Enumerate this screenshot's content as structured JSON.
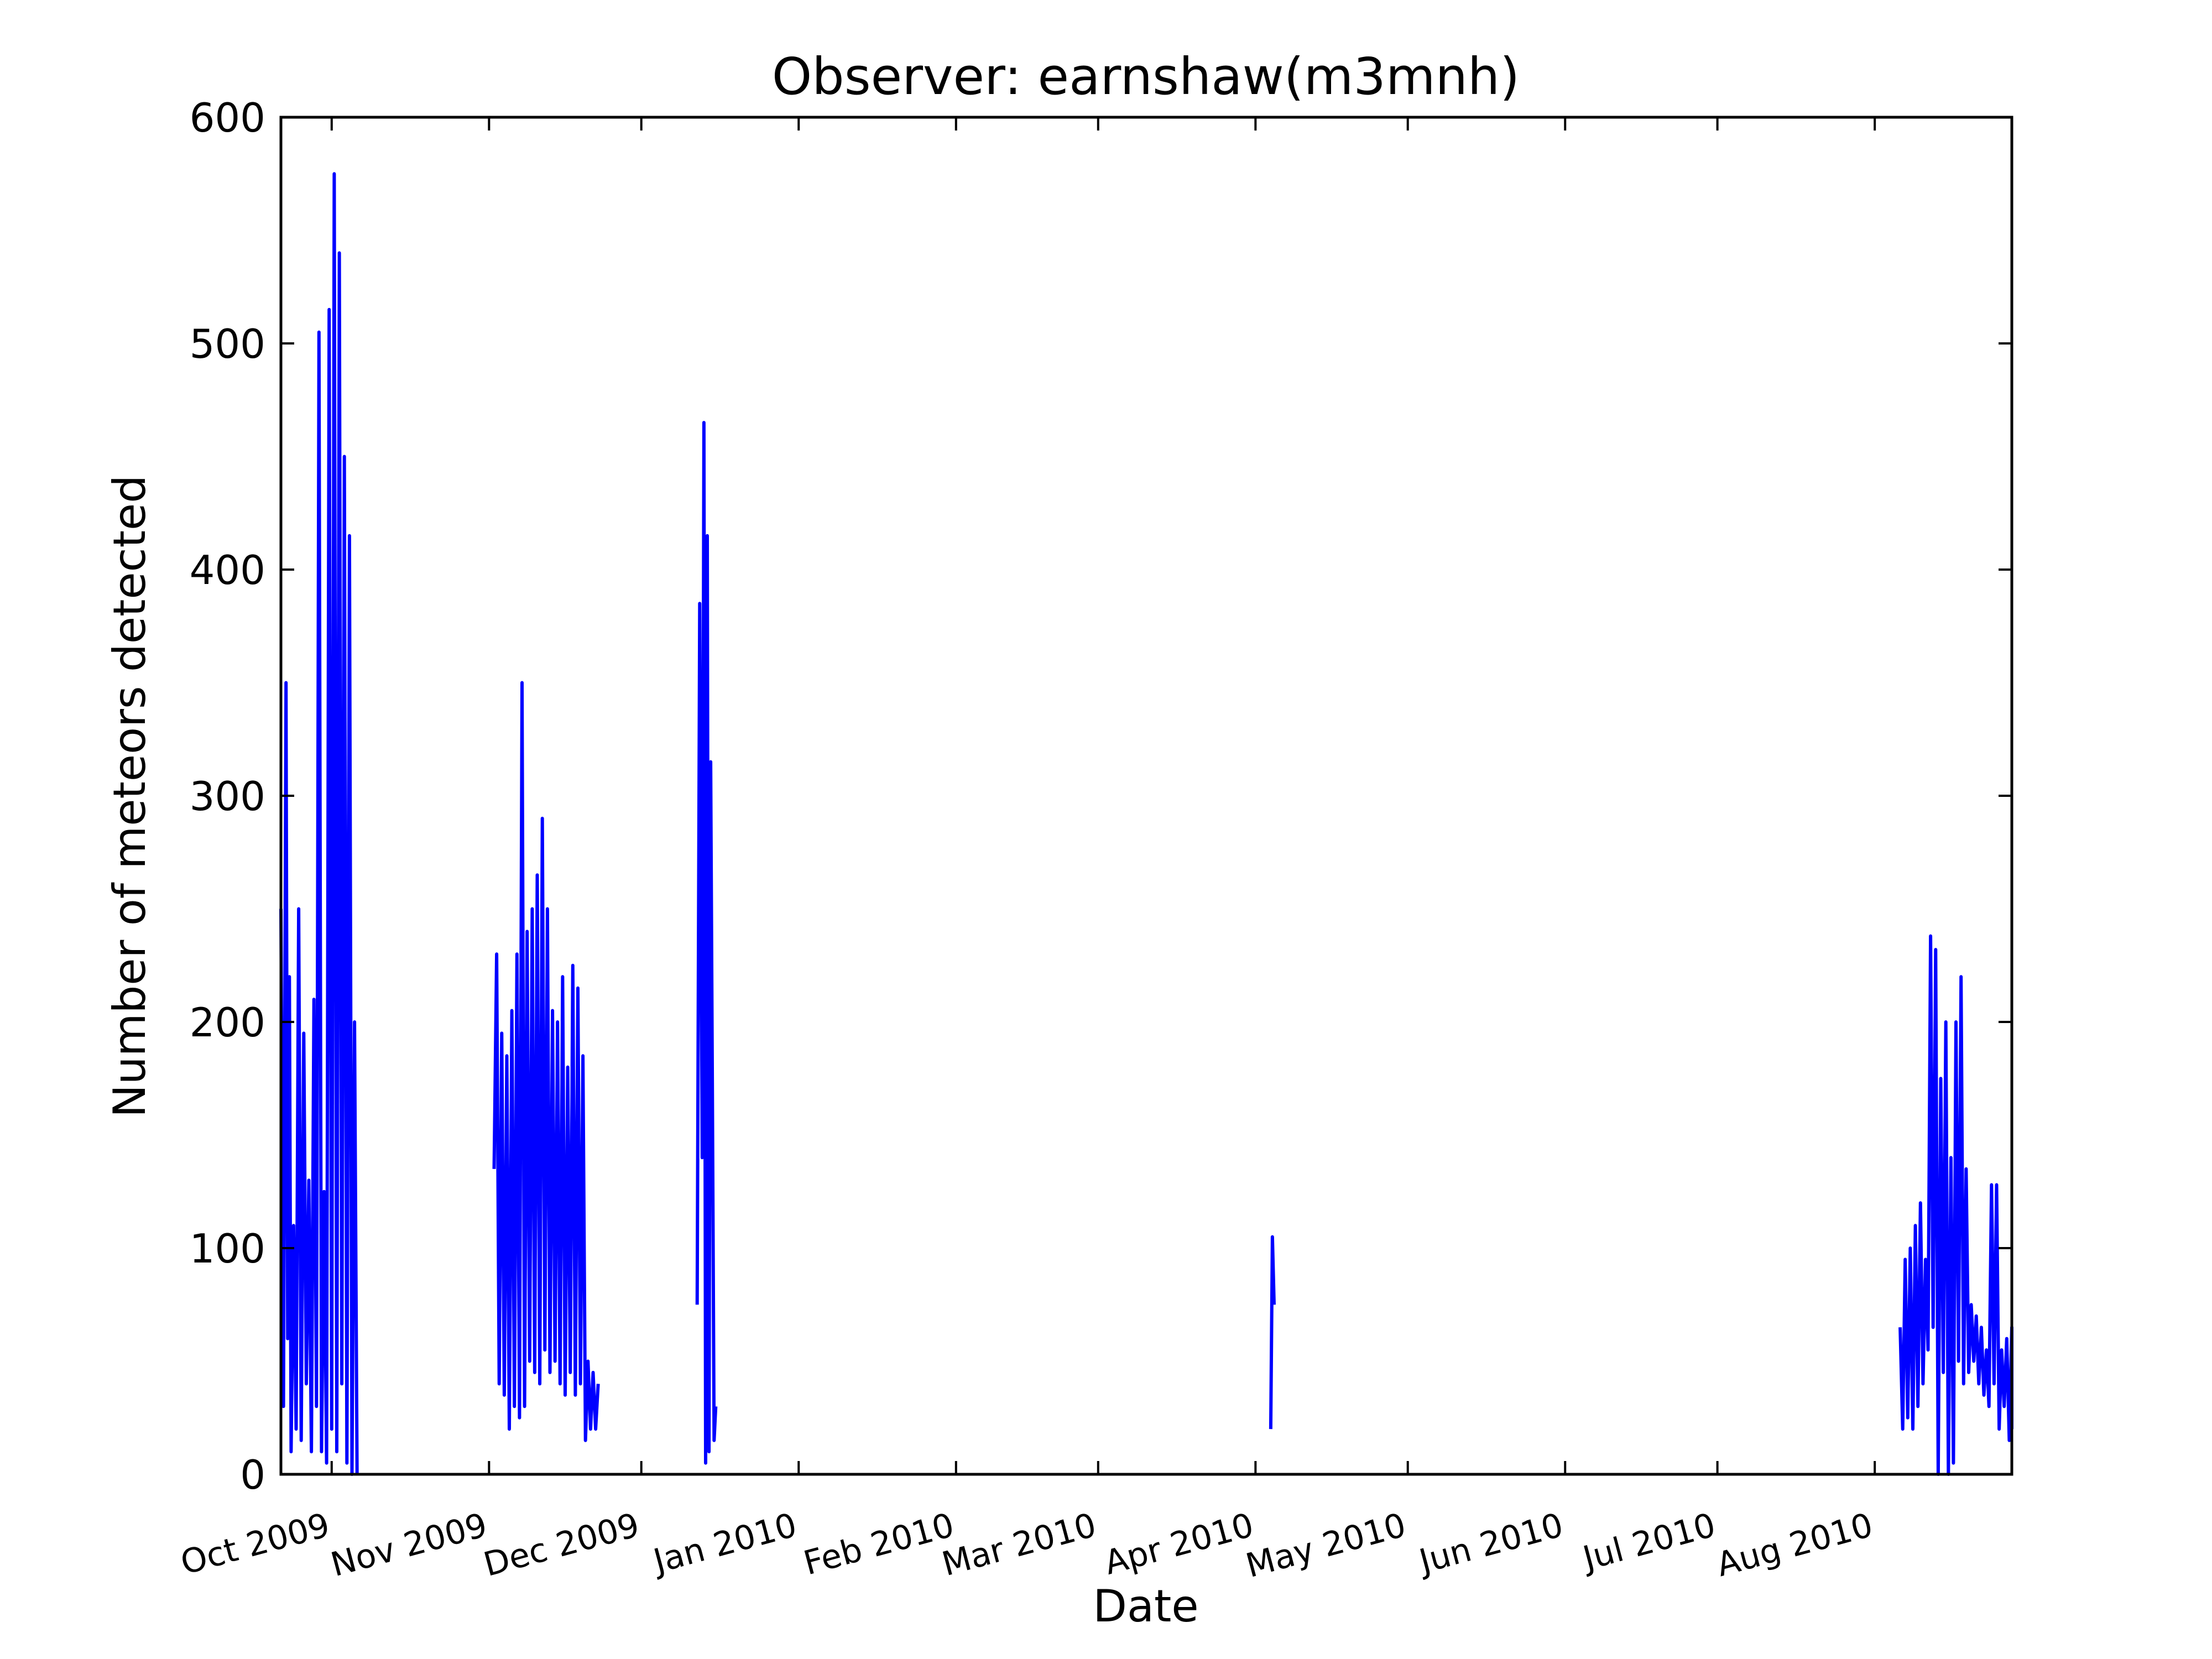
{
  "chart_data": {
    "type": "line",
    "title": "Observer: earnshaw(m3mnh)",
    "xlabel": "Date",
    "ylabel": "Number of meteors detected",
    "xlim": [
      "2009-09-21",
      "2010-08-28"
    ],
    "ylim": [
      0,
      600
    ],
    "yticks": [
      0,
      100,
      200,
      300,
      400,
      500,
      600
    ],
    "xticks": [
      {
        "date": "2009-10-01",
        "label": "Oct 2009"
      },
      {
        "date": "2009-11-01",
        "label": "Nov 2009"
      },
      {
        "date": "2009-12-01",
        "label": "Dec 2009"
      },
      {
        "date": "2010-01-01",
        "label": "Jan 2010"
      },
      {
        "date": "2010-02-01",
        "label": "Feb 2010"
      },
      {
        "date": "2010-03-01",
        "label": "Mar 2010"
      },
      {
        "date": "2010-04-01",
        "label": "Apr 2010"
      },
      {
        "date": "2010-05-01",
        "label": "May 2010"
      },
      {
        "date": "2010-06-01",
        "label": "Jun 2010"
      },
      {
        "date": "2010-07-01",
        "label": "Jul 2010"
      },
      {
        "date": "2010-08-01",
        "label": "Aug 2010"
      }
    ],
    "grid": false,
    "line_color": "#0000ff",
    "series": [
      {
        "x": [
          "2009-09-21",
          "2009-09-21",
          "2009-09-22",
          "2009-09-22",
          "2009-09-22",
          "2009-09-23",
          "2009-09-23",
          "2009-09-24",
          "2009-09-24",
          "2009-09-25",
          "2009-09-25",
          "2009-09-26",
          "2009-09-26",
          "2009-09-27",
          "2009-09-27",
          "2009-09-28",
          "2009-09-28",
          "2009-09-29",
          "2009-09-29",
          "2009-09-30",
          "2009-09-30",
          "2009-10-01",
          "2009-10-01",
          "2009-10-02",
          "2009-10-02",
          "2009-10-03",
          "2009-10-03",
          "2009-10-04",
          "2009-10-04",
          "2009-10-05",
          "2009-10-05",
          "2009-10-06"
        ],
        "y": [
          250,
          30,
          350,
          60,
          220,
          10,
          110,
          20,
          250,
          15,
          195,
          40,
          130,
          10,
          210,
          30,
          505,
          10,
          125,
          5,
          515,
          20,
          575,
          10,
          540,
          40,
          450,
          5,
          415,
          0,
          200,
          0
        ]
      },
      {
        "x": [
          "2009-11-02",
          "2009-11-02",
          "2009-11-03",
          "2009-11-03",
          "2009-11-04",
          "2009-11-04",
          "2009-11-05",
          "2009-11-05",
          "2009-11-06",
          "2009-11-06",
          "2009-11-07",
          "2009-11-07",
          "2009-11-08",
          "2009-11-08",
          "2009-11-09",
          "2009-11-09",
          "2009-11-10",
          "2009-11-10",
          "2009-11-11",
          "2009-11-11",
          "2009-11-12",
          "2009-11-12",
          "2009-11-13",
          "2009-11-13",
          "2009-11-14",
          "2009-11-14",
          "2009-11-15",
          "2009-11-15",
          "2009-11-16",
          "2009-11-16",
          "2009-11-17",
          "2009-11-17",
          "2009-11-18",
          "2009-11-18",
          "2009-11-19",
          "2009-11-19",
          "2009-11-20",
          "2009-11-20",
          "2009-11-21",
          "2009-11-21",
          "2009-11-22",
          "2009-11-22"
        ],
        "y": [
          135,
          230,
          40,
          195,
          35,
          185,
          20,
          205,
          30,
          230,
          25,
          350,
          30,
          240,
          50,
          250,
          45,
          265,
          40,
          290,
          55,
          250,
          45,
          205,
          50,
          200,
          40,
          220,
          35,
          180,
          45,
          225,
          35,
          215,
          40,
          185,
          15,
          50,
          20,
          45,
          20,
          40
        ]
      },
      {
        "x": [
          "2009-12-12",
          "2009-12-12",
          "2009-12-13",
          "2009-12-13",
          "2009-12-13",
          "2009-12-14",
          "2009-12-14",
          "2009-12-14",
          "2009-12-15",
          "2009-12-15",
          "2009-12-15"
        ],
        "y": [
          75,
          385,
          140,
          465,
          5,
          415,
          10,
          315,
          170,
          15,
          30
        ]
      },
      {
        "x": [
          "2010-04-04",
          "2010-04-04",
          "2010-04-04"
        ],
        "y": [
          20,
          105,
          75
        ]
      },
      {
        "x": [
          "2010-08-06",
          "2010-08-06",
          "2010-08-07",
          "2010-08-07",
          "2010-08-08",
          "2010-08-08",
          "2010-08-09",
          "2010-08-09",
          "2010-08-10",
          "2010-08-10",
          "2010-08-11",
          "2010-08-11",
          "2010-08-12",
          "2010-08-12",
          "2010-08-13",
          "2010-08-13",
          "2010-08-14",
          "2010-08-14",
          "2010-08-15",
          "2010-08-15",
          "2010-08-16",
          "2010-08-16",
          "2010-08-17",
          "2010-08-17",
          "2010-08-18",
          "2010-08-18",
          "2010-08-19",
          "2010-08-19",
          "2010-08-20",
          "2010-08-20",
          "2010-08-21",
          "2010-08-21",
          "2010-08-22",
          "2010-08-22",
          "2010-08-23",
          "2010-08-23",
          "2010-08-24",
          "2010-08-24",
          "2010-08-25",
          "2010-08-25",
          "2010-08-26",
          "2010-08-26",
          "2010-08-27",
          "2010-08-27",
          "2010-08-28",
          "2010-08-28"
        ],
        "y": [
          65,
          20,
          95,
          25,
          100,
          20,
          110,
          30,
          120,
          40,
          95,
          55,
          238,
          65,
          232,
          0,
          175,
          45,
          200,
          0,
          140,
          5,
          200,
          50,
          220,
          40,
          135,
          45,
          75,
          50,
          70,
          40,
          65,
          35,
          55,
          30,
          128,
          40,
          128,
          20,
          55,
          30,
          60,
          15,
          65,
          20
        ]
      }
    ]
  }
}
